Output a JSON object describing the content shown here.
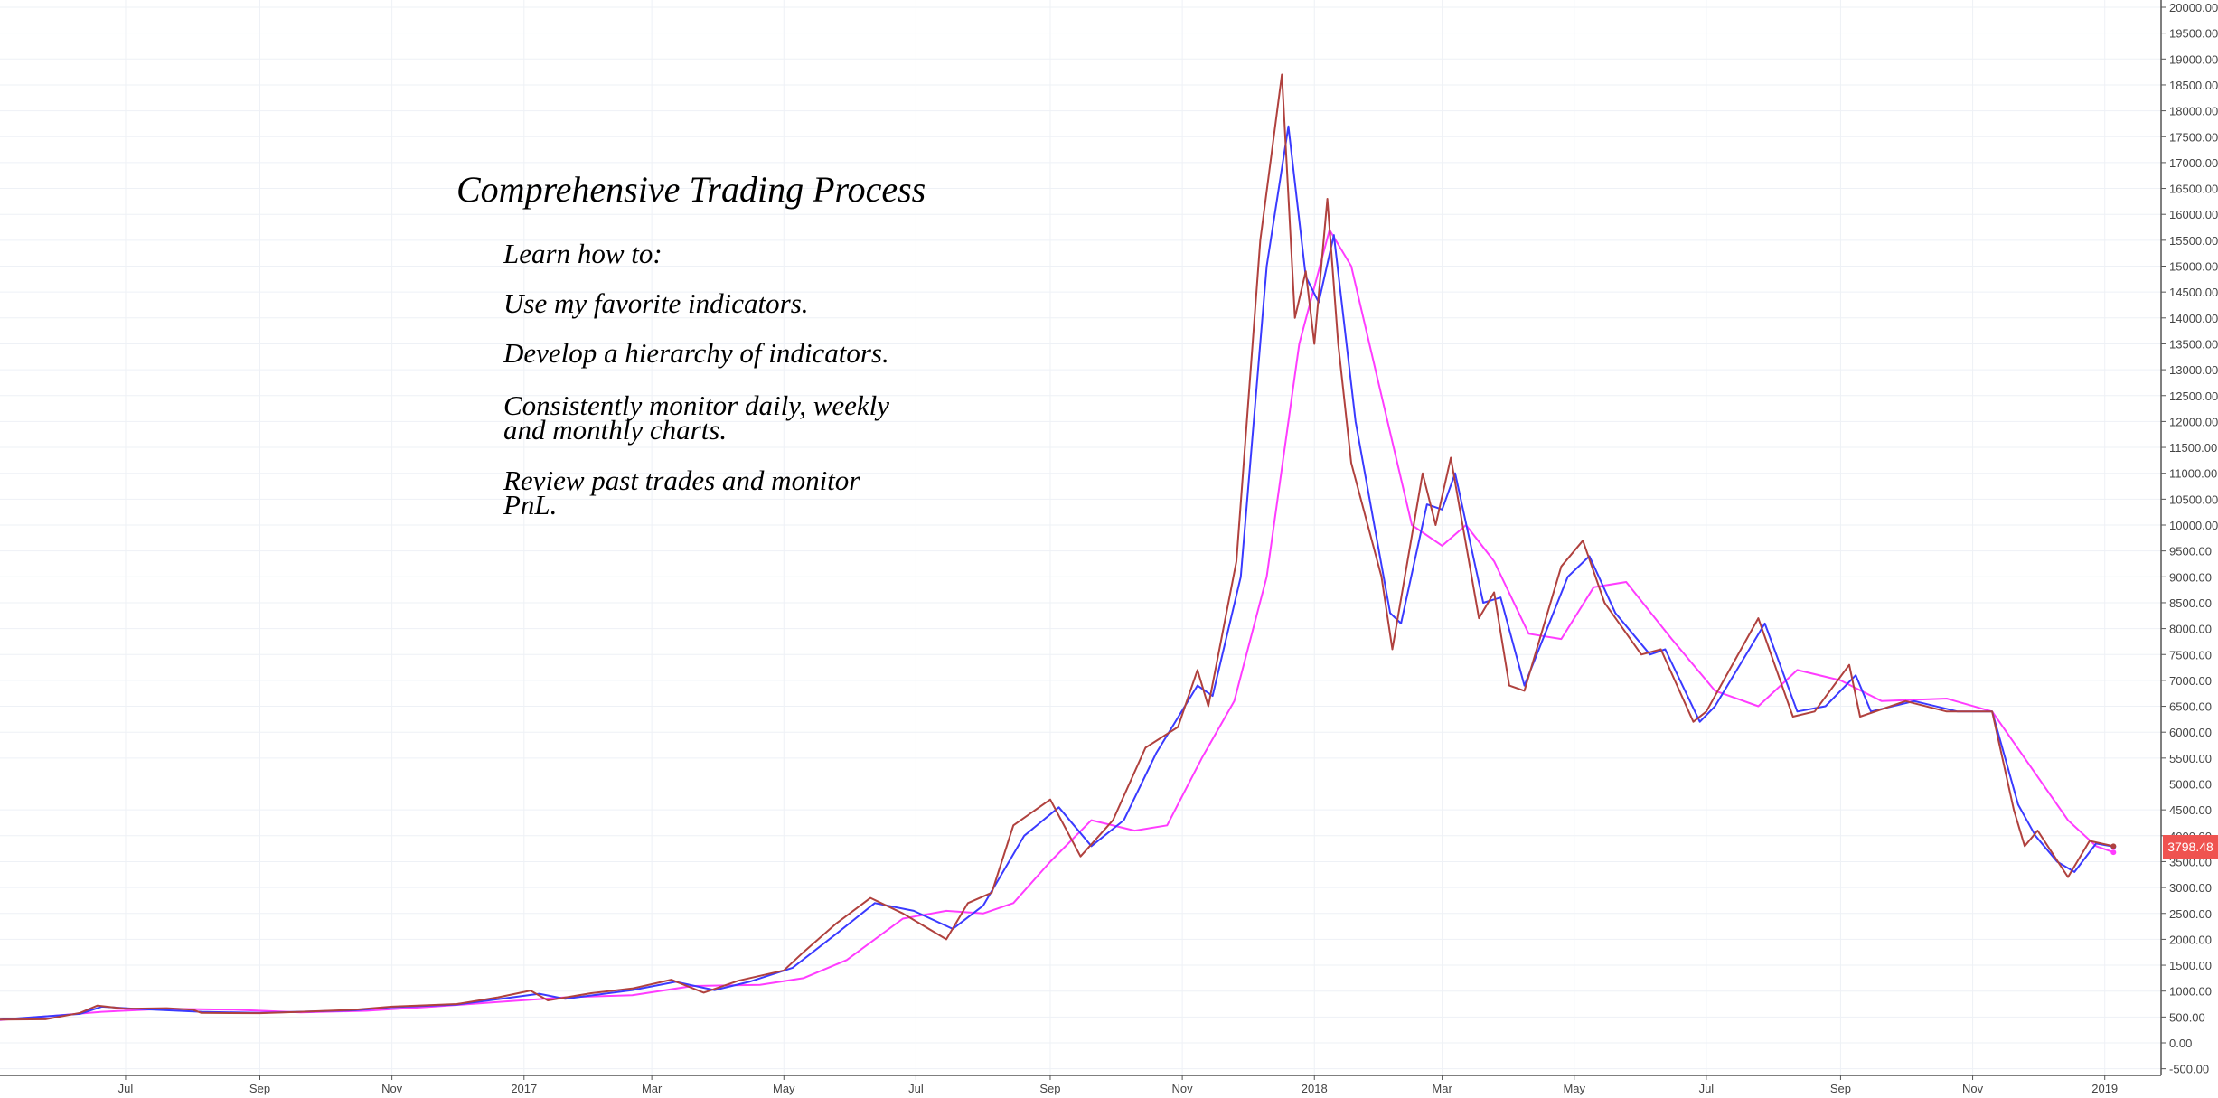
{
  "chart_data": {
    "type": "line",
    "title": "",
    "xlabel": "",
    "ylabel": "",
    "ylim": [
      -500,
      20000
    ],
    "y_ticks_step": 500,
    "x_tick_labels": [
      {
        "date": "2016-07-01",
        "label": "Jul"
      },
      {
        "date": "2016-09-01",
        "label": "Sep"
      },
      {
        "date": "2016-11-01",
        "label": "Nov"
      },
      {
        "date": "2017-01-01",
        "label": "2017"
      },
      {
        "date": "2017-03-01",
        "label": "Mar"
      },
      {
        "date": "2017-05-01",
        "label": "May"
      },
      {
        "date": "2017-07-01",
        "label": "Jul"
      },
      {
        "date": "2017-09-01",
        "label": "Sep"
      },
      {
        "date": "2017-11-01",
        "label": "Nov"
      },
      {
        "date": "2018-01-01",
        "label": "2018"
      },
      {
        "date": "2018-03-01",
        "label": "Mar"
      },
      {
        "date": "2018-05-01",
        "label": "May"
      },
      {
        "date": "2018-07-01",
        "label": "Jul"
      },
      {
        "date": "2018-09-01",
        "label": "Sep"
      },
      {
        "date": "2018-11-01",
        "label": "Nov"
      },
      {
        "date": "2019-01-01",
        "label": "2019"
      }
    ],
    "x_range": [
      "2016-05-04",
      "2019-01-27"
    ],
    "grid": true,
    "last_price_label": "3798.48",
    "colors": {
      "price": "#b0413e",
      "fast_ma": "#3a3aff",
      "slow_ma": "#ff3cff",
      "price_tag": "#ef5350"
    },
    "series": [
      {
        "key": "price",
        "points": [
          [
            "2016-05-04",
            450
          ],
          [
            "2016-05-25",
            455
          ],
          [
            "2016-06-10",
            580
          ],
          [
            "2016-06-18",
            720
          ],
          [
            "2016-07-01",
            660
          ],
          [
            "2016-07-20",
            670
          ],
          [
            "2016-08-01",
            640
          ],
          [
            "2016-08-05",
            580
          ],
          [
            "2016-09-01",
            575
          ],
          [
            "2016-09-20",
            600
          ],
          [
            "2016-10-15",
            640
          ],
          [
            "2016-11-01",
            700
          ],
          [
            "2016-12-01",
            750
          ],
          [
            "2016-12-20",
            880
          ],
          [
            "2017-01-04",
            1010
          ],
          [
            "2017-01-12",
            820
          ],
          [
            "2017-02-01",
            960
          ],
          [
            "2017-02-20",
            1050
          ],
          [
            "2017-03-10",
            1220
          ],
          [
            "2017-03-25",
            970
          ],
          [
            "2017-04-10",
            1200
          ],
          [
            "2017-05-01",
            1400
          ],
          [
            "2017-05-10",
            1750
          ],
          [
            "2017-05-25",
            2300
          ],
          [
            "2017-06-10",
            2800
          ],
          [
            "2017-06-25",
            2500
          ],
          [
            "2017-07-15",
            2000
          ],
          [
            "2017-07-25",
            2700
          ],
          [
            "2017-08-05",
            2900
          ],
          [
            "2017-08-15",
            4200
          ],
          [
            "2017-09-01",
            4700
          ],
          [
            "2017-09-15",
            3600
          ],
          [
            "2017-09-30",
            4300
          ],
          [
            "2017-10-15",
            5700
          ],
          [
            "2017-10-30",
            6100
          ],
          [
            "2017-11-08",
            7200
          ],
          [
            "2017-11-13",
            6500
          ],
          [
            "2017-11-26",
            9300
          ],
          [
            "2017-12-07",
            15500
          ],
          [
            "2017-12-17",
            18700
          ],
          [
            "2017-12-23",
            14000
          ],
          [
            "2017-12-28",
            14900
          ],
          [
            "2018-01-01",
            13500
          ],
          [
            "2018-01-07",
            16300
          ],
          [
            "2018-01-12",
            13500
          ],
          [
            "2018-01-18",
            11200
          ],
          [
            "2018-02-01",
            9000
          ],
          [
            "2018-02-06",
            7600
          ],
          [
            "2018-02-20",
            11000
          ],
          [
            "2018-02-26",
            10000
          ],
          [
            "2018-03-05",
            11300
          ],
          [
            "2018-03-18",
            8200
          ],
          [
            "2018-03-25",
            8700
          ],
          [
            "2018-04-01",
            6900
          ],
          [
            "2018-04-08",
            6800
          ],
          [
            "2018-04-25",
            9200
          ],
          [
            "2018-05-05",
            9700
          ],
          [
            "2018-05-15",
            8500
          ],
          [
            "2018-06-01",
            7500
          ],
          [
            "2018-06-10",
            7600
          ],
          [
            "2018-06-25",
            6200
          ],
          [
            "2018-07-01",
            6400
          ],
          [
            "2018-07-25",
            8200
          ],
          [
            "2018-08-10",
            6300
          ],
          [
            "2018-08-20",
            6400
          ],
          [
            "2018-09-05",
            7300
          ],
          [
            "2018-09-10",
            6300
          ],
          [
            "2018-10-01",
            6600
          ],
          [
            "2018-10-20",
            6400
          ],
          [
            "2018-11-10",
            6400
          ],
          [
            "2018-11-20",
            4500
          ],
          [
            "2018-11-25",
            3800
          ],
          [
            "2018-12-01",
            4100
          ],
          [
            "2018-12-15",
            3200
          ],
          [
            "2018-12-25",
            3900
          ],
          [
            "2019-01-05",
            3798.48
          ]
        ]
      },
      {
        "key": "fast_ma",
        "points": [
          [
            "2016-05-04",
            450
          ],
          [
            "2016-06-10",
            560
          ],
          [
            "2016-06-20",
            700
          ],
          [
            "2016-07-05",
            660
          ],
          [
            "2016-08-05",
            600
          ],
          [
            "2016-09-01",
            580
          ],
          [
            "2016-10-15",
            630
          ],
          [
            "2016-11-01",
            690
          ],
          [
            "2016-12-01",
            740
          ],
          [
            "2016-12-25",
            870
          ],
          [
            "2017-01-08",
            950
          ],
          [
            "2017-01-20",
            850
          ],
          [
            "2017-02-20",
            1020
          ],
          [
            "2017-03-12",
            1180
          ],
          [
            "2017-03-30",
            1020
          ],
          [
            "2017-04-15",
            1180
          ],
          [
            "2017-05-05",
            1450
          ],
          [
            "2017-05-25",
            2100
          ],
          [
            "2017-06-12",
            2700
          ],
          [
            "2017-06-30",
            2550
          ],
          [
            "2017-07-18",
            2200
          ],
          [
            "2017-08-01",
            2650
          ],
          [
            "2017-08-20",
            4000
          ],
          [
            "2017-09-05",
            4550
          ],
          [
            "2017-09-20",
            3800
          ],
          [
            "2017-10-05",
            4300
          ],
          [
            "2017-10-20",
            5600
          ],
          [
            "2017-11-08",
            6900
          ],
          [
            "2017-11-15",
            6700
          ],
          [
            "2017-11-28",
            9000
          ],
          [
            "2017-12-10",
            15000
          ],
          [
            "2017-12-20",
            17700
          ],
          [
            "2017-12-28",
            14800
          ],
          [
            "2018-01-03",
            14300
          ],
          [
            "2018-01-10",
            15600
          ],
          [
            "2018-01-20",
            12000
          ],
          [
            "2018-02-05",
            8300
          ],
          [
            "2018-02-10",
            8100
          ],
          [
            "2018-02-22",
            10400
          ],
          [
            "2018-03-01",
            10300
          ],
          [
            "2018-03-07",
            11000
          ],
          [
            "2018-03-20",
            8500
          ],
          [
            "2018-03-28",
            8600
          ],
          [
            "2018-04-08",
            6900
          ],
          [
            "2018-04-28",
            9000
          ],
          [
            "2018-05-08",
            9400
          ],
          [
            "2018-05-20",
            8300
          ],
          [
            "2018-06-05",
            7500
          ],
          [
            "2018-06-12",
            7600
          ],
          [
            "2018-06-28",
            6200
          ],
          [
            "2018-07-05",
            6500
          ],
          [
            "2018-07-28",
            8100
          ],
          [
            "2018-08-12",
            6400
          ],
          [
            "2018-08-25",
            6500
          ],
          [
            "2018-09-08",
            7100
          ],
          [
            "2018-09-15",
            6400
          ],
          [
            "2018-10-05",
            6600
          ],
          [
            "2018-10-25",
            6400
          ],
          [
            "2018-11-10",
            6400
          ],
          [
            "2018-11-22",
            4600
          ],
          [
            "2018-11-30",
            4000
          ],
          [
            "2018-12-10",
            3500
          ],
          [
            "2018-12-18",
            3300
          ],
          [
            "2018-12-28",
            3850
          ],
          [
            "2019-01-05",
            3790
          ]
        ]
      },
      {
        "key": "slow_ma",
        "points": [
          [
            "2016-05-04",
            440
          ],
          [
            "2016-06-20",
            600
          ],
          [
            "2016-07-20",
            660
          ],
          [
            "2016-08-20",
            640
          ],
          [
            "2016-09-20",
            590
          ],
          [
            "2016-10-20",
            620
          ],
          [
            "2016-11-20",
            700
          ],
          [
            "2016-12-20",
            790
          ],
          [
            "2017-01-20",
            880
          ],
          [
            "2017-02-20",
            920
          ],
          [
            "2017-03-20",
            1100
          ],
          [
            "2017-04-20",
            1120
          ],
          [
            "2017-05-10",
            1250
          ],
          [
            "2017-05-30",
            1600
          ],
          [
            "2017-06-25",
            2400
          ],
          [
            "2017-07-15",
            2550
          ],
          [
            "2017-08-01",
            2500
          ],
          [
            "2017-08-15",
            2700
          ],
          [
            "2017-09-01",
            3500
          ],
          [
            "2017-09-20",
            4300
          ],
          [
            "2017-10-10",
            4100
          ],
          [
            "2017-10-25",
            4200
          ],
          [
            "2017-11-10",
            5500
          ],
          [
            "2017-11-25",
            6600
          ],
          [
            "2017-12-10",
            9000
          ],
          [
            "2017-12-25",
            13500
          ],
          [
            "2018-01-08",
            15700
          ],
          [
            "2018-01-18",
            15000
          ],
          [
            "2018-02-01",
            12500
          ],
          [
            "2018-02-15",
            10000
          ],
          [
            "2018-03-01",
            9600
          ],
          [
            "2018-03-12",
            10000
          ],
          [
            "2018-03-25",
            9300
          ],
          [
            "2018-04-10",
            7900
          ],
          [
            "2018-04-25",
            7800
          ],
          [
            "2018-05-10",
            8800
          ],
          [
            "2018-05-25",
            8900
          ],
          [
            "2018-06-15",
            7800
          ],
          [
            "2018-07-05",
            6800
          ],
          [
            "2018-07-25",
            6500
          ],
          [
            "2018-08-12",
            7200
          ],
          [
            "2018-09-01",
            7000
          ],
          [
            "2018-09-20",
            6600
          ],
          [
            "2018-10-20",
            6650
          ],
          [
            "2018-11-10",
            6400
          ],
          [
            "2018-11-25",
            5500
          ],
          [
            "2018-12-15",
            4300
          ],
          [
            "2018-12-28",
            3800
          ],
          [
            "2019-01-05",
            3680
          ]
        ]
      }
    ]
  },
  "annotation": {
    "title": "Comprehensive Trading Process",
    "lines": [
      "Learn how to:",
      "Use my favorite indicators.",
      "Develop a hierarchy of indicators.",
      "Consistently monitor daily, weekly\nand monthly charts.",
      "Review past trades and monitor\nPnL."
    ]
  }
}
